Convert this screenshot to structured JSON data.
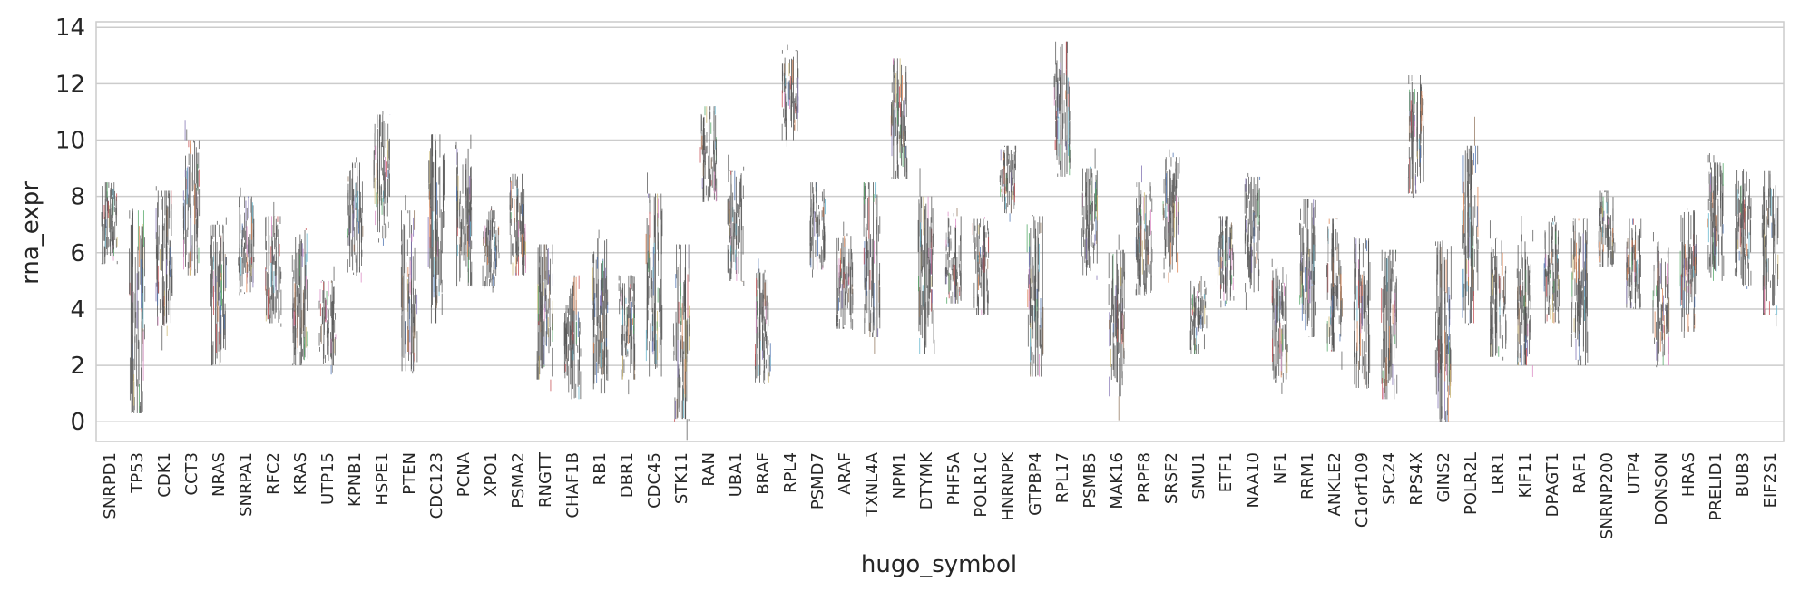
{
  "chart_data": {
    "type": "strip",
    "title": "",
    "xlabel": "hugo_symbol",
    "ylabel": "rna_expr",
    "ylim": [
      -0.7,
      14.2
    ],
    "yticks": [
      0,
      2,
      4,
      6,
      8,
      10,
      12,
      14
    ],
    "grid": "horizontal",
    "categories": [
      "SNRPD1",
      "TP53",
      "CDK1",
      "CCT3",
      "NRAS",
      "SNRPA1",
      "RFC2",
      "KRAS",
      "UTP15",
      "KPNB1",
      "HSPE1",
      "PTEN",
      "CDC123",
      "PCNA",
      "XPO1",
      "PSMA2",
      "RNGTT",
      "CHAF1B",
      "RB1",
      "DBR1",
      "CDC45",
      "STK11",
      "RAN",
      "UBA1",
      "BRAF",
      "RPL4",
      "PSMD7",
      "ARAF",
      "TXNL4A",
      "NPM1",
      "DTYMK",
      "PHF5A",
      "POLR1C",
      "HNRNPK",
      "GTPBP4",
      "RPL17",
      "PSMB5",
      "MAK16",
      "PRPF8",
      "SRSF2",
      "SMU1",
      "ETF1",
      "NAA10",
      "NF1",
      "RRM1",
      "ANKLE2",
      "C1orf109",
      "SPC24",
      "RPS4X",
      "GINS2",
      "POLR2L",
      "LRR1",
      "KIF11",
      "DPAGT1",
      "RAF1",
      "SNRNP200",
      "UTP4",
      "DONSON",
      "HRAS",
      "PRELID1",
      "BUB3",
      "EIF2S1"
    ],
    "ranges": [
      [
        5.6,
        8.5
      ],
      [
        0.3,
        7.5
      ],
      [
        3.4,
        8.2
      ],
      [
        5.2,
        10.0
      ],
      [
        2.0,
        7.0
      ],
      [
        4.6,
        8.0
      ],
      [
        3.5,
        7.3
      ],
      [
        2.0,
        6.8
      ],
      [
        2.0,
        5.0
      ],
      [
        5.3,
        9.2
      ],
      [
        6.5,
        10.9
      ],
      [
        1.8,
        7.5
      ],
      [
        3.5,
        10.2
      ],
      [
        4.8,
        9.7
      ],
      [
        4.8,
        7.5
      ],
      [
        5.2,
        8.8
      ],
      [
        1.5,
        6.3
      ],
      [
        0.8,
        5.2
      ],
      [
        1.0,
        6.5
      ],
      [
        1.5,
        5.2
      ],
      [
        1.6,
        8.1
      ],
      [
        0.1,
        6.3
      ],
      [
        7.8,
        11.2
      ],
      [
        5.0,
        8.9
      ],
      [
        1.4,
        5.3
      ],
      [
        10.0,
        13.2
      ],
      [
        5.4,
        8.5
      ],
      [
        3.3,
        6.6
      ],
      [
        3.0,
        8.5
      ],
      [
        8.6,
        12.9
      ],
      [
        2.4,
        8.0
      ],
      [
        4.2,
        7.3
      ],
      [
        3.8,
        7.2
      ],
      [
        7.4,
        9.8
      ],
      [
        1.6,
        7.3
      ],
      [
        8.7,
        13.5
      ],
      [
        5.2,
        9.0
      ],
      [
        0.9,
        6.1
      ],
      [
        4.5,
        8.5
      ],
      [
        5.3,
        9.4
      ],
      [
        2.4,
        5.0
      ],
      [
        4.3,
        7.3
      ],
      [
        4.6,
        8.7
      ],
      [
        1.4,
        5.5
      ],
      [
        3.0,
        7.9
      ],
      [
        2.5,
        7.2
      ],
      [
        1.2,
        6.5
      ],
      [
        0.8,
        6.1
      ],
      [
        8.1,
        12.3
      ],
      [
        0.0,
        6.4
      ],
      [
        3.5,
        9.8
      ],
      [
        2.3,
        6.5
      ],
      [
        2.0,
        6.4
      ],
      [
        3.5,
        7.1
      ],
      [
        2.0,
        7.2
      ],
      [
        5.5,
        8.2
      ],
      [
        4.0,
        7.2
      ],
      [
        2.0,
        6.4
      ],
      [
        3.2,
        7.5
      ],
      [
        5.0,
        9.2
      ],
      [
        4.8,
        9.0
      ],
      [
        3.8,
        8.9
      ]
    ],
    "colors": [
      "#4c72b0",
      "#dd8452",
      "#55a868",
      "#c44e52",
      "#8172b3",
      "#937860",
      "#da8bc3",
      "#8c8c8c",
      "#ccb974",
      "#64b5cd"
    ]
  }
}
